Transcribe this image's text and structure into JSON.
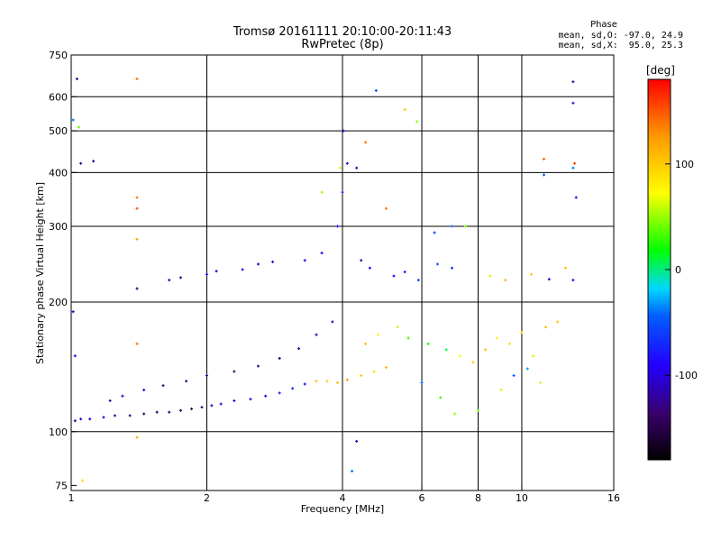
{
  "header": {
    "title_line1": "Tromsø 20161111 20:10:00-20:11:43",
    "title_line2": "RwPretec (8p)"
  },
  "legend": {
    "title": "Phase",
    "line_o": "mean, sd,O: -97.0, 24.9",
    "line_x": "mean, sd,X:  95.0, 25.3"
  },
  "colorbar": {
    "label": "[deg]",
    "ticks": [
      {
        "value": 100,
        "label": "100"
      },
      {
        "value": 0,
        "label": "0"
      },
      {
        "value": -100,
        "label": "-100"
      }
    ],
    "range": [
      -180,
      180
    ]
  },
  "chart_data": {
    "type": "scatter",
    "xlabel": "Frequency [MHz]",
    "ylabel": "Stationary phase Virtual Height [km]",
    "xscale": "log",
    "yscale": "log",
    "xlim": [
      1,
      16
    ],
    "ylim": [
      73,
      750
    ],
    "xticks": [
      {
        "value": 1,
        "label": "1"
      },
      {
        "value": 2,
        "label": "2"
      },
      {
        "value": 4,
        "label": "4"
      },
      {
        "value": 6,
        "label": "6"
      },
      {
        "value": 8,
        "label": "8"
      },
      {
        "value": 10,
        "label": "10"
      },
      {
        "value": 16,
        "label": "16"
      }
    ],
    "yticks": [
      {
        "value": 75,
        "label": "75"
      },
      {
        "value": 100,
        "label": "100"
      },
      {
        "value": 200,
        "label": "200"
      },
      {
        "value": 300,
        "label": "300"
      },
      {
        "value": 400,
        "label": "400"
      },
      {
        "value": 500,
        "label": "500"
      },
      {
        "value": 600,
        "label": "600"
      },
      {
        "value": 750,
        "label": "750"
      }
    ],
    "x_gridlines": [
      2,
      4,
      6,
      8,
      10
    ],
    "y_gridlines": [
      100,
      200,
      300,
      400,
      500,
      600
    ],
    "grid": true,
    "color_meaning": "phase in degrees",
    "series": [
      {
        "points": [
          {
            "x": 1.02,
            "y": 106,
            "phase": -120
          },
          {
            "x": 1.05,
            "y": 107,
            "phase": -110
          },
          {
            "x": 1.1,
            "y": 107,
            "phase": -100
          },
          {
            "x": 1.18,
            "y": 108,
            "phase": -110
          },
          {
            "x": 1.25,
            "y": 109,
            "phase": -120
          },
          {
            "x": 1.35,
            "y": 109,
            "phase": -130
          },
          {
            "x": 1.45,
            "y": 110,
            "phase": -140
          },
          {
            "x": 1.55,
            "y": 111,
            "phase": -150
          },
          {
            "x": 1.65,
            "y": 111,
            "phase": -140
          },
          {
            "x": 1.75,
            "y": 112,
            "phase": -150
          },
          {
            "x": 1.85,
            "y": 113,
            "phase": -140
          },
          {
            "x": 1.95,
            "y": 114,
            "phase": -130
          },
          {
            "x": 2.05,
            "y": 115,
            "phase": -110
          },
          {
            "x": 2.15,
            "y": 116,
            "phase": -100
          },
          {
            "x": 2.3,
            "y": 118,
            "phase": -100
          },
          {
            "x": 2.5,
            "y": 119,
            "phase": -95
          },
          {
            "x": 2.7,
            "y": 121,
            "phase": -90
          },
          {
            "x": 2.9,
            "y": 123,
            "phase": -80
          },
          {
            "x": 3.1,
            "y": 126,
            "phase": -70
          },
          {
            "x": 3.3,
            "y": 129,
            "phase": -90
          },
          {
            "x": 3.5,
            "y": 131,
            "phase": 110
          },
          {
            "x": 3.7,
            "y": 131,
            "phase": 100
          },
          {
            "x": 3.9,
            "y": 130,
            "phase": 110
          },
          {
            "x": 4.1,
            "y": 132,
            "phase": 120
          },
          {
            "x": 4.4,
            "y": 135,
            "phase": 100
          },
          {
            "x": 4.7,
            "y": 138,
            "phase": 90
          },
          {
            "x": 5.0,
            "y": 141,
            "phase": 110
          },
          {
            "x": 1.22,
            "y": 118,
            "phase": -120
          },
          {
            "x": 1.3,
            "y": 121,
            "phase": -110
          },
          {
            "x": 1.45,
            "y": 125,
            "phase": -100
          },
          {
            "x": 1.6,
            "y": 128,
            "phase": -140
          },
          {
            "x": 1.8,
            "y": 131,
            "phase": -130
          },
          {
            "x": 2.0,
            "y": 135,
            "phase": -120
          },
          {
            "x": 2.3,
            "y": 138,
            "phase": -140
          },
          {
            "x": 2.6,
            "y": 142,
            "phase": -130
          },
          {
            "x": 2.9,
            "y": 148,
            "phase": -150
          },
          {
            "x": 3.2,
            "y": 156,
            "phase": -120
          },
          {
            "x": 3.5,
            "y": 168,
            "phase": -110
          },
          {
            "x": 3.8,
            "y": 180,
            "phase": -100
          },
          {
            "x": 1.65,
            "y": 225,
            "phase": -110
          },
          {
            "x": 1.75,
            "y": 228,
            "phase": -120
          },
          {
            "x": 2.0,
            "y": 232,
            "phase": -100
          },
          {
            "x": 2.1,
            "y": 236,
            "phase": -110
          },
          {
            "x": 2.4,
            "y": 238,
            "phase": -100
          },
          {
            "x": 2.6,
            "y": 245,
            "phase": -110
          },
          {
            "x": 2.8,
            "y": 248,
            "phase": -100
          },
          {
            "x": 3.3,
            "y": 250,
            "phase": -90
          },
          {
            "x": 3.6,
            "y": 260,
            "phase": -100
          },
          {
            "x": 3.9,
            "y": 300,
            "phase": -80
          },
          {
            "x": 4.0,
            "y": 360,
            "phase": -70
          },
          {
            "x": 4.02,
            "y": 500,
            "phase": -100
          },
          {
            "x": 4.1,
            "y": 420,
            "phase": -110
          },
          {
            "x": 4.3,
            "y": 410,
            "phase": -120
          },
          {
            "x": 4.4,
            "y": 250,
            "phase": -110
          },
          {
            "x": 4.6,
            "y": 240,
            "phase": -100
          },
          {
            "x": 5.2,
            "y": 230,
            "phase": -90
          },
          {
            "x": 5.5,
            "y": 235,
            "phase": -80
          },
          {
            "x": 5.9,
            "y": 225,
            "phase": -60
          },
          {
            "x": 6.5,
            "y": 245,
            "phase": -50
          },
          {
            "x": 7.0,
            "y": 240,
            "phase": -70
          },
          {
            "x": 8.5,
            "y": 230,
            "phase": 60
          },
          {
            "x": 9.2,
            "y": 225,
            "phase": 110
          },
          {
            "x": 10.5,
            "y": 232,
            "phase": 100
          },
          {
            "x": 11.5,
            "y": 226,
            "phase": -100
          },
          {
            "x": 12.5,
            "y": 240,
            "phase": 110
          },
          {
            "x": 13.0,
            "y": 225,
            "phase": -90
          },
          {
            "x": 4.5,
            "y": 160,
            "phase": 110
          },
          {
            "x": 4.8,
            "y": 168,
            "phase": 80
          },
          {
            "x": 5.3,
            "y": 175,
            "phase": 60
          },
          {
            "x": 5.6,
            "y": 165,
            "phase": 30
          },
          {
            "x": 6.2,
            "y": 160,
            "phase": 20
          },
          {
            "x": 6.8,
            "y": 155,
            "phase": 10
          },
          {
            "x": 7.3,
            "y": 150,
            "phase": 70
          },
          {
            "x": 7.8,
            "y": 145,
            "phase": 100
          },
          {
            "x": 8.3,
            "y": 155,
            "phase": 110
          },
          {
            "x": 8.8,
            "y": 165,
            "phase": 80
          },
          {
            "x": 9.4,
            "y": 160,
            "phase": 90
          },
          {
            "x": 10.0,
            "y": 170,
            "phase": 100
          },
          {
            "x": 10.6,
            "y": 150,
            "phase": 60
          },
          {
            "x": 11.3,
            "y": 175,
            "phase": 110
          },
          {
            "x": 12.0,
            "y": 180,
            "phase": 100
          },
          {
            "x": 6.0,
            "y": 130,
            "phase": -40
          },
          {
            "x": 6.6,
            "y": 120,
            "phase": 30
          },
          {
            "x": 7.1,
            "y": 110,
            "phase": 50
          },
          {
            "x": 8.0,
            "y": 112,
            "phase": 40
          },
          {
            "x": 9.0,
            "y": 125,
            "phase": 60
          },
          {
            "x": 9.6,
            "y": 135,
            "phase": -50
          },
          {
            "x": 10.3,
            "y": 140,
            "phase": -30
          },
          {
            "x": 11.0,
            "y": 130,
            "phase": 60
          },
          {
            "x": 4.3,
            "y": 95,
            "phase": -120
          },
          {
            "x": 4.2,
            "y": 81,
            "phase": -40
          },
          {
            "x": 1.03,
            "y": 660,
            "phase": -120
          },
          {
            "x": 1.4,
            "y": 660,
            "phase": 140
          },
          {
            "x": 1.4,
            "y": 350,
            "phase": 140
          },
          {
            "x": 1.4,
            "y": 330,
            "phase": 150
          },
          {
            "x": 1.4,
            "y": 280,
            "phase": 120
          },
          {
            "x": 1.4,
            "y": 215,
            "phase": -140
          },
          {
            "x": 1.4,
            "y": 160,
            "phase": 140
          },
          {
            "x": 1.4,
            "y": 97,
            "phase": 120
          },
          {
            "x": 1.05,
            "y": 420,
            "phase": -130
          },
          {
            "x": 1.12,
            "y": 425,
            "phase": -120
          },
          {
            "x": 1.01,
            "y": 530,
            "phase": -40
          },
          {
            "x": 1.04,
            "y": 510,
            "phase": 40
          },
          {
            "x": 1.01,
            "y": 190,
            "phase": -110
          },
          {
            "x": 1.02,
            "y": 150,
            "phase": -100
          },
          {
            "x": 1.06,
            "y": 77,
            "phase": 90
          },
          {
            "x": 4.75,
            "y": 620,
            "phase": -60
          },
          {
            "x": 5.5,
            "y": 560,
            "phase": 100
          },
          {
            "x": 5.85,
            "y": 525,
            "phase": 50
          },
          {
            "x": 3.95,
            "y": 410,
            "phase": 60
          },
          {
            "x": 4.5,
            "y": 470,
            "phase": 140
          },
          {
            "x": 3.6,
            "y": 360,
            "phase": 50
          },
          {
            "x": 5.0,
            "y": 330,
            "phase": 140
          },
          {
            "x": 11.2,
            "y": 430,
            "phase": 150
          },
          {
            "x": 13.0,
            "y": 650,
            "phase": -120
          },
          {
            "x": 13.0,
            "y": 580,
            "phase": -100
          },
          {
            "x": 13.1,
            "y": 420,
            "phase": 160
          },
          {
            "x": 13.0,
            "y": 410,
            "phase": -40
          },
          {
            "x": 11.2,
            "y": 395,
            "phase": -50
          },
          {
            "x": 13.2,
            "y": 350,
            "phase": -90
          },
          {
            "x": 6.4,
            "y": 290,
            "phase": -60
          },
          {
            "x": 7.0,
            "y": 300,
            "phase": -40
          },
          {
            "x": 7.5,
            "y": 300,
            "phase": 40
          }
        ]
      }
    ]
  }
}
